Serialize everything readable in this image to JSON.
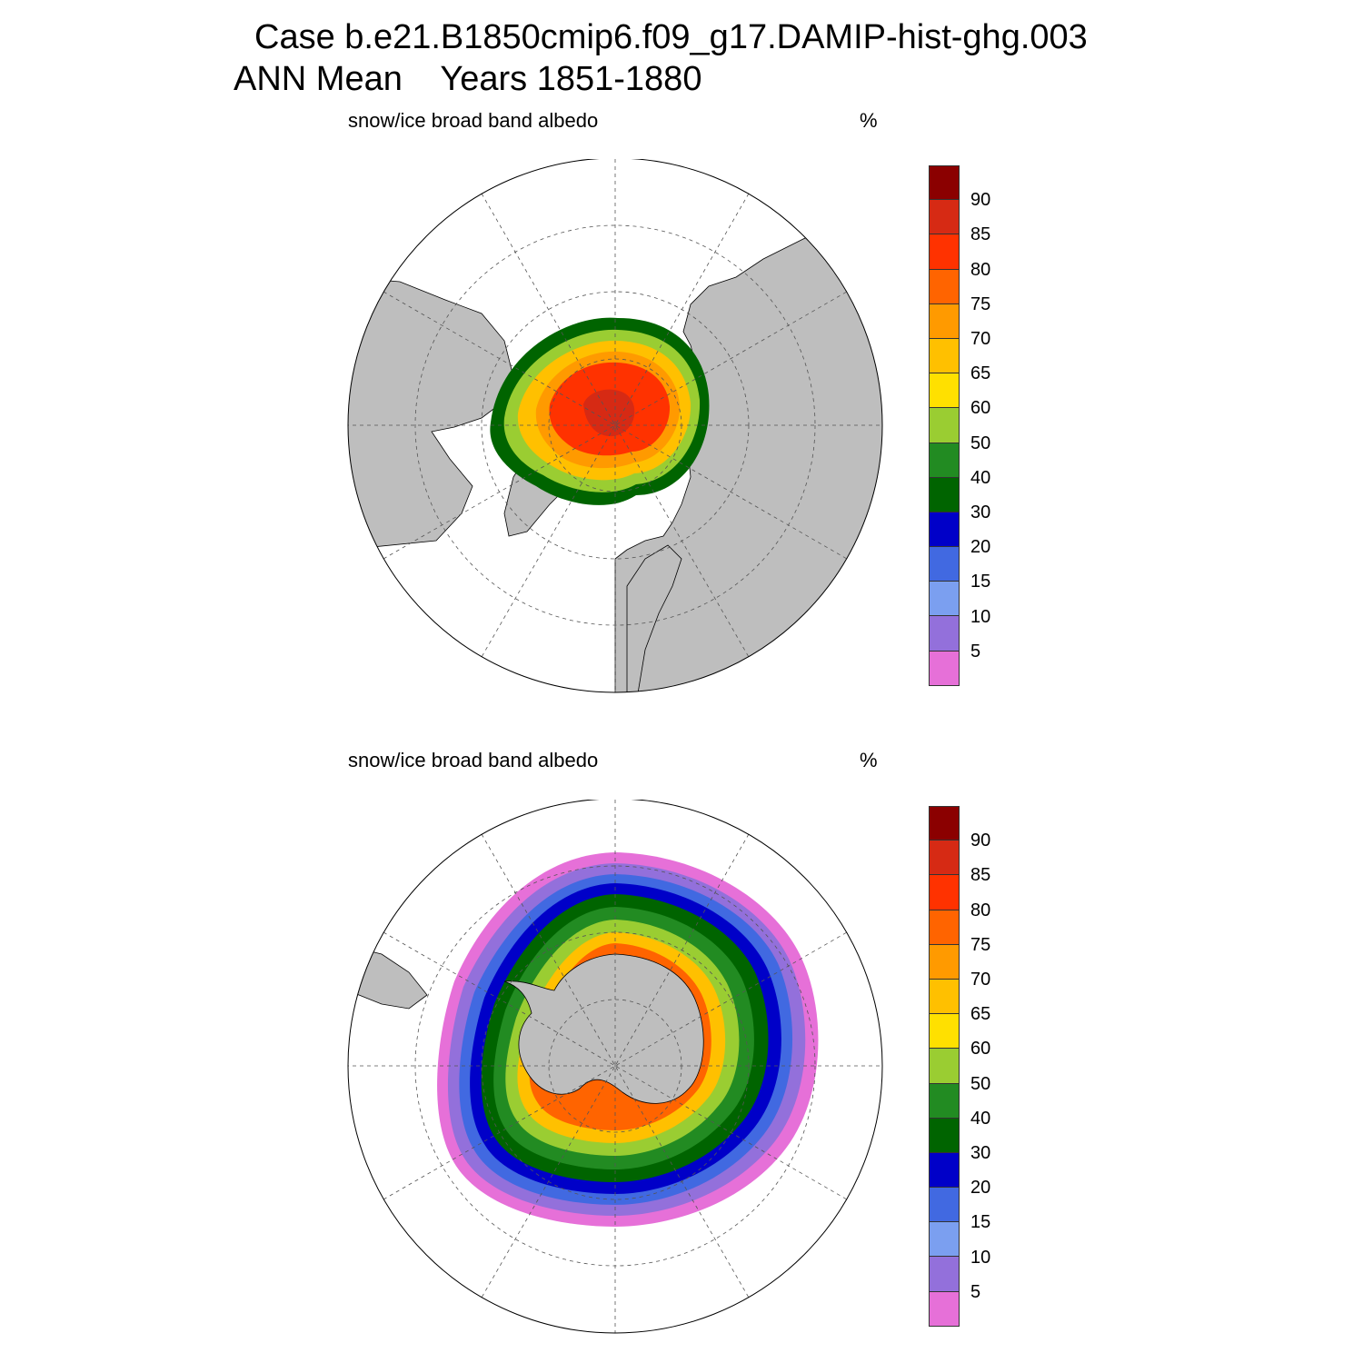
{
  "header": {
    "title_line1": "Case b.e21.B1850cmip6.f09_g17.DAMIP-hist-ghg.003",
    "title_line2": "ANN Mean    Years 1851-1880"
  },
  "panels": [
    {
      "id": "north",
      "variable_label": "snow/ice broad band albedo",
      "units_label": "%"
    },
    {
      "id": "south",
      "variable_label": "snow/ice broad band albedo",
      "units_label": "%"
    }
  ],
  "colorbar": {
    "levels": [
      "5",
      "10",
      "15",
      "20",
      "30",
      "40",
      "50",
      "60",
      "65",
      "70",
      "75",
      "80",
      "85",
      "90"
    ],
    "colors": [
      "#e670d8",
      "#9370db",
      "#7b9ff0",
      "#4169e1",
      "#0000c8",
      "#006400",
      "#228b22",
      "#9acd32",
      "#ffe000",
      "#ffc000",
      "#ff9a00",
      "#ff6400",
      "#ff3200",
      "#d62a14",
      "#8b0000"
    ]
  },
  "map_colors": {
    "land": "#bebebe",
    "ocean": "#ffffff",
    "grid": "#555555"
  }
}
